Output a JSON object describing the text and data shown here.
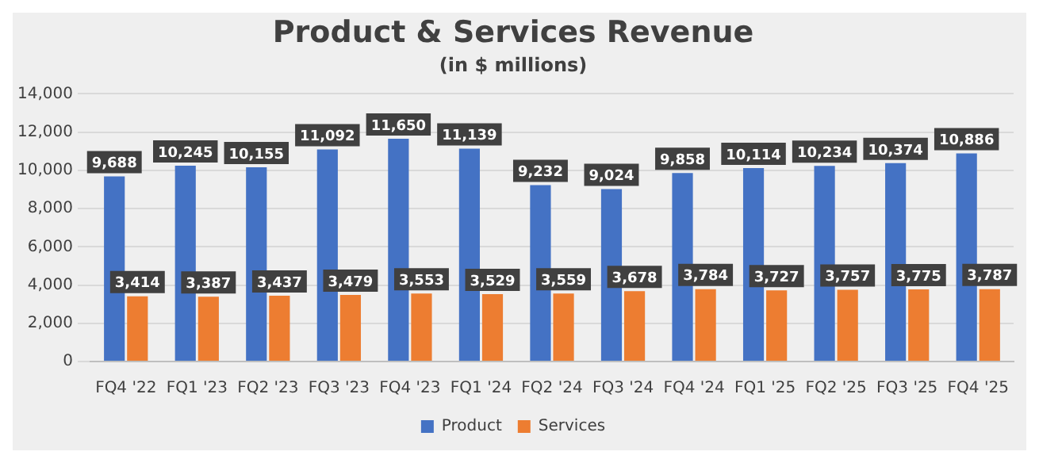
{
  "chart_data": {
    "type": "bar",
    "title": "Product & Services Revenue",
    "subtitle": "(in $ millions)",
    "categories": [
      "FQ4 '22",
      "FQ1 '23",
      "FQ2 '23",
      "FQ3 '23",
      "FQ4 '23",
      "FQ1 '24",
      "FQ2 '24",
      "FQ3 '24",
      "FQ4 '24",
      "FQ1 '25",
      "FQ2 '25",
      "FQ3 '25",
      "FQ4 '25"
    ],
    "series": [
      {
        "name": "Product",
        "color": "#4472c4",
        "values": [
          9688,
          10245,
          10155,
          11092,
          11650,
          11139,
          9232,
          9024,
          9858,
          10114,
          10234,
          10374,
          10886
        ],
        "value_labels": [
          "9,688",
          "10,245",
          "10,155",
          "11,092",
          "11,650",
          "11,139",
          "9,232",
          "9,024",
          "9,858",
          "10,114",
          "10,234",
          "10,374",
          "10,886"
        ]
      },
      {
        "name": "Services",
        "color": "#ed7d31",
        "values": [
          3414,
          3387,
          3437,
          3479,
          3553,
          3529,
          3559,
          3678,
          3784,
          3727,
          3757,
          3775,
          3787
        ],
        "value_labels": [
          "3,414",
          "3,387",
          "3,437",
          "3,479",
          "3,553",
          "3,529",
          "3,559",
          "3,678",
          "3,784",
          "3,727",
          "3,757",
          "3,775",
          "3,787"
        ]
      }
    ],
    "ylim": [
      0,
      14000
    ],
    "yticks": [
      {
        "value": 0,
        "label": "0"
      },
      {
        "value": 2000,
        "label": "2,000"
      },
      {
        "value": 4000,
        "label": "4,000"
      },
      {
        "value": 6000,
        "label": "6,000"
      },
      {
        "value": 8000,
        "label": "8,000"
      },
      {
        "value": 10000,
        "label": "10,000"
      },
      {
        "value": 12000,
        "label": "12,000"
      },
      {
        "value": 14000,
        "label": "14,000"
      }
    ],
    "grid": "y",
    "legend": "bottom"
  }
}
